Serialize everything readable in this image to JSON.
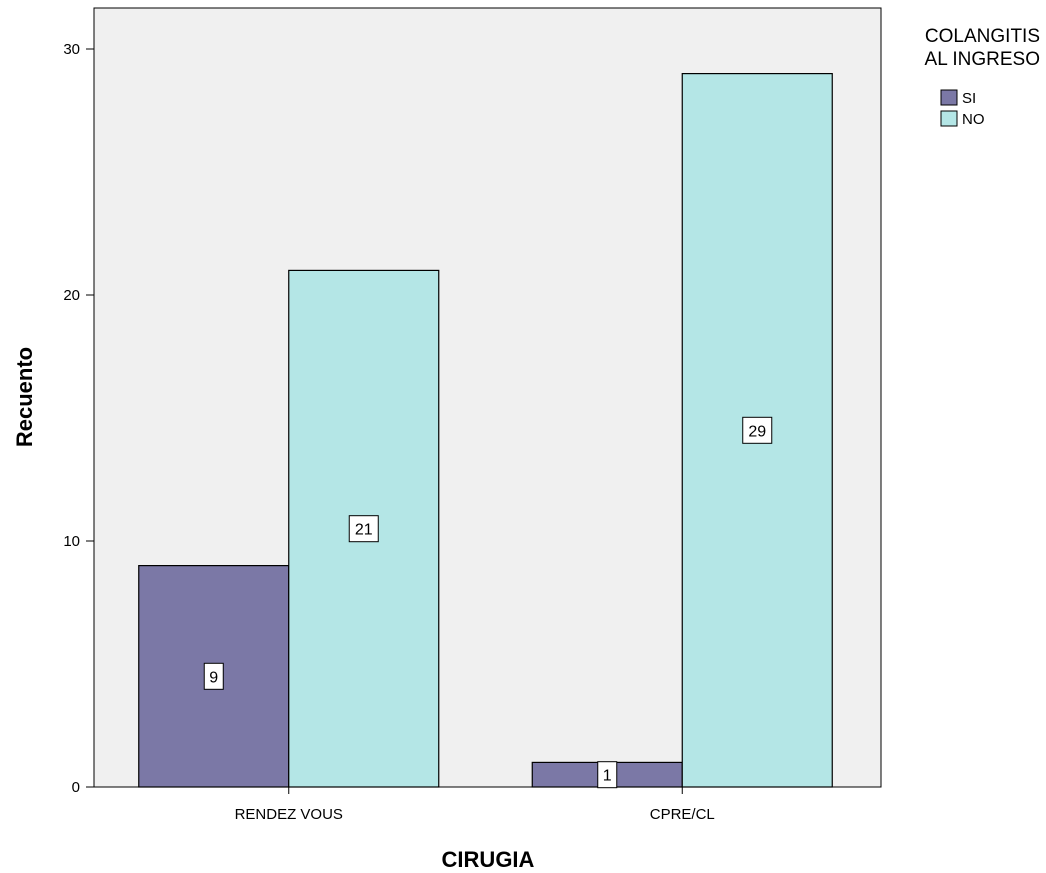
{
  "chart_data": {
    "type": "bar",
    "categories": [
      "RENDEZ VOUS",
      "CPRE/CL"
    ],
    "series": [
      {
        "name": "SI",
        "values": [
          9,
          1
        ],
        "color": "#7b78a6"
      },
      {
        "name": "NO",
        "values": [
          21,
          29
        ],
        "color": "#b4e6e6"
      }
    ],
    "xlabel": "CIRUGIA",
    "ylabel": "Recuento",
    "ylim": [
      0,
      30
    ],
    "yticks": [
      0,
      10,
      20,
      30
    ],
    "legend": {
      "title_lines": [
        "COLANGITIS",
        "AL INGRESO"
      ],
      "placement": "right"
    },
    "grid": false,
    "data_labels": true,
    "plot_background": "#f0f0f0"
  }
}
